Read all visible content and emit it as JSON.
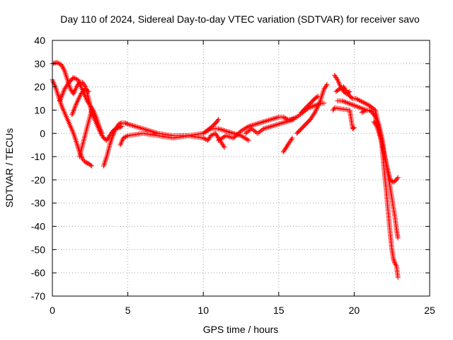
{
  "chart_data": {
    "type": "scatter",
    "title": "Day 110 of 2024, Sidereal Day-to-day VTEC variation (SDTVAR) for receiver savo",
    "xlabel": "GPS time / hours",
    "ylabel": "SDTVAR / TECUs",
    "xlim": [
      0,
      25
    ],
    "ylim": [
      -70,
      40
    ],
    "xticks": [
      0,
      5,
      10,
      15,
      20,
      25
    ],
    "yticks": [
      40,
      30,
      20,
      10,
      0,
      -10,
      -20,
      -30,
      -40,
      -50,
      -60,
      -70
    ],
    "grid": true,
    "legend": "none",
    "marker": "+",
    "color": "#ff0000",
    "series": [
      {
        "name": "s1",
        "points": [
          [
            0,
            30
          ],
          [
            0.3,
            30.5
          ],
          [
            0.6,
            29.5
          ],
          [
            0.8,
            27
          ],
          [
            1.0,
            23
          ],
          [
            1.2,
            19
          ],
          [
            1.4,
            17
          ],
          [
            1.6,
            20
          ],
          [
            1.8,
            22
          ],
          [
            2.0,
            22
          ],
          [
            2.2,
            20
          ],
          [
            2.4,
            15
          ],
          [
            2.6,
            9
          ],
          [
            2.8,
            6
          ],
          [
            3.0,
            3
          ],
          [
            3.2,
            0
          ],
          [
            3.4,
            -2
          ],
          [
            3.6,
            -3
          ],
          [
            3.8,
            -1
          ],
          [
            4.0,
            1
          ],
          [
            4.2,
            2
          ],
          [
            4.4,
            2.5
          ],
          [
            4.6,
            3
          ]
        ]
      },
      {
        "name": "s2",
        "points": [
          [
            0,
            23
          ],
          [
            0.2,
            20
          ],
          [
            0.4,
            16
          ],
          [
            0.6,
            12
          ],
          [
            0.8,
            9
          ],
          [
            1.0,
            6
          ],
          [
            1.2,
            3
          ],
          [
            1.4,
            0
          ],
          [
            1.6,
            -4
          ],
          [
            1.8,
            -8
          ],
          [
            2.0,
            -11
          ],
          [
            2.2,
            -12.5
          ],
          [
            2.4,
            -13
          ],
          [
            2.6,
            -14
          ]
        ]
      },
      {
        "name": "s3",
        "points": [
          [
            0.5,
            14
          ],
          [
            0.8,
            19
          ],
          [
            1.1,
            22
          ],
          [
            1.4,
            24
          ],
          [
            1.7,
            23
          ],
          [
            1.9,
            20
          ],
          [
            2.1,
            17
          ],
          [
            2.3,
            14
          ],
          [
            2.5,
            12
          ],
          [
            2.7,
            10
          ],
          [
            2.9,
            7
          ],
          [
            3.1,
            3
          ],
          [
            3.3,
            0
          ]
        ]
      },
      {
        "name": "s4",
        "points": [
          [
            1.3,
            8
          ],
          [
            1.6,
            13
          ],
          [
            1.9,
            17
          ],
          [
            2.2,
            19
          ],
          [
            2.4,
            18
          ]
        ]
      },
      {
        "name": "s5",
        "points": [
          [
            1.8,
            -10
          ],
          [
            2.0,
            -5
          ],
          [
            2.2,
            0
          ],
          [
            2.4,
            5
          ],
          [
            2.6,
            10
          ]
        ]
      },
      {
        "name": "s6",
        "points": [
          [
            3.4,
            -14
          ],
          [
            3.6,
            -10
          ],
          [
            3.8,
            -5
          ],
          [
            4.0,
            -1
          ],
          [
            4.2,
            2
          ],
          [
            4.4,
            4
          ],
          [
            4.6,
            4.5
          ],
          [
            4.8,
            4.5
          ],
          [
            5.0,
            4
          ],
          [
            5.5,
            3
          ],
          [
            6.0,
            2
          ],
          [
            6.5,
            1
          ],
          [
            7.0,
            0
          ],
          [
            7.5,
            -0.5
          ],
          [
            8.0,
            -1
          ],
          [
            8.5,
            -1
          ],
          [
            9.0,
            -1
          ],
          [
            9.5,
            -0.5
          ],
          [
            10.0,
            0
          ],
          [
            10.3,
            1.5
          ],
          [
            10.6,
            3
          ],
          [
            10.9,
            5
          ],
          [
            11.0,
            6
          ]
        ]
      },
      {
        "name": "s7",
        "points": [
          [
            4.5,
            -5
          ],
          [
            4.7,
            -2
          ],
          [
            5.0,
            -1
          ],
          [
            5.5,
            -0.5
          ],
          [
            6.0,
            0
          ],
          [
            6.5,
            -0.5
          ],
          [
            7.0,
            -1
          ],
          [
            7.5,
            -1.5
          ],
          [
            8.0,
            -2
          ],
          [
            8.5,
            -1.5
          ],
          [
            9.0,
            -1
          ],
          [
            9.5,
            -1.5
          ],
          [
            10.0,
            -2
          ],
          [
            10.3,
            -3
          ],
          [
            10.5,
            -1
          ],
          [
            10.8,
            0
          ],
          [
            11.0,
            -2
          ],
          [
            11.2,
            -4
          ],
          [
            11.4,
            -6
          ]
        ]
      },
      {
        "name": "s8",
        "points": [
          [
            10.0,
            0
          ],
          [
            10.5,
            2
          ],
          [
            11.0,
            2
          ],
          [
            11.5,
            1
          ],
          [
            12.0,
            0
          ],
          [
            12.5,
            -1
          ],
          [
            13.0,
            -3
          ]
        ]
      },
      {
        "name": "s9",
        "points": [
          [
            11.0,
            -3
          ],
          [
            11.5,
            -1
          ],
          [
            12.0,
            -2
          ],
          [
            12.5,
            1
          ],
          [
            13.0,
            3
          ],
          [
            13.5,
            4
          ],
          [
            14.0,
            5
          ],
          [
            14.5,
            6
          ],
          [
            15.0,
            7
          ],
          [
            15.3,
            7
          ],
          [
            15.6,
            6
          ],
          [
            15.9,
            6
          ]
        ]
      },
      {
        "name": "s10",
        "points": [
          [
            12.8,
            0
          ],
          [
            13.2,
            2
          ],
          [
            13.6,
            0
          ],
          [
            14.0,
            2
          ],
          [
            14.5,
            3
          ],
          [
            15.0,
            4
          ],
          [
            15.5,
            5
          ],
          [
            16.0,
            6
          ]
        ]
      },
      {
        "name": "s11",
        "points": [
          [
            15.3,
            -8
          ],
          [
            15.5,
            -6
          ],
          [
            15.7,
            -4
          ],
          [
            15.9,
            -2
          ]
        ]
      },
      {
        "name": "s12",
        "points": [
          [
            16.2,
            0
          ],
          [
            16.5,
            2
          ],
          [
            16.8,
            4
          ],
          [
            17.1,
            6
          ],
          [
            17.4,
            9
          ],
          [
            17.7,
            13
          ],
          [
            18.0,
            19
          ],
          [
            18.2,
            21
          ]
        ]
      },
      {
        "name": "s13",
        "points": [
          [
            15.8,
            6
          ],
          [
            16.2,
            7
          ],
          [
            16.6,
            9
          ],
          [
            17.0,
            11
          ],
          [
            17.4,
            12
          ],
          [
            17.8,
            13
          ],
          [
            18.0,
            13
          ]
        ]
      },
      {
        "name": "s14",
        "points": [
          [
            16.5,
            9
          ],
          [
            16.8,
            11
          ],
          [
            17.1,
            13
          ],
          [
            17.4,
            15
          ],
          [
            17.6,
            16
          ]
        ]
      },
      {
        "name": "s15",
        "points": [
          [
            18.7,
            25
          ],
          [
            18.9,
            23
          ],
          [
            19.1,
            20
          ],
          [
            19.3,
            18
          ],
          [
            19.5,
            17
          ],
          [
            19.7,
            18
          ]
        ]
      },
      {
        "name": "s16",
        "points": [
          [
            18.8,
            18
          ],
          [
            19.0,
            19
          ],
          [
            19.3,
            20
          ],
          [
            19.5,
            18
          ],
          [
            19.7,
            16
          ],
          [
            19.9,
            15
          ],
          [
            20.1,
            15
          ],
          [
            20.4,
            14
          ],
          [
            20.7,
            13
          ],
          [
            21.0,
            12
          ],
          [
            21.2,
            11
          ],
          [
            21.4,
            10
          ],
          [
            21.5,
            7
          ],
          [
            21.7,
            2
          ],
          [
            21.9,
            -4
          ],
          [
            22.0,
            -10
          ],
          [
            22.2,
            -15
          ],
          [
            22.4,
            -20
          ],
          [
            22.6,
            -21
          ],
          [
            22.8,
            -20
          ],
          [
            22.9,
            -19
          ]
        ]
      },
      {
        "name": "s17",
        "points": [
          [
            20.5,
            9
          ],
          [
            20.8,
            10
          ],
          [
            21.0,
            10
          ],
          [
            21.2,
            9
          ],
          [
            21.4,
            7
          ],
          [
            21.6,
            3
          ],
          [
            21.8,
            -3
          ],
          [
            21.9,
            -10
          ],
          [
            22.0,
            -17
          ],
          [
            22.1,
            -23
          ],
          [
            22.2,
            -30
          ],
          [
            22.3,
            -37
          ],
          [
            22.4,
            -44
          ],
          [
            22.5,
            -50
          ],
          [
            22.6,
            -54
          ],
          [
            22.7,
            -56
          ],
          [
            22.8,
            -57
          ],
          [
            22.9,
            -62
          ]
        ]
      },
      {
        "name": "s18",
        "points": [
          [
            21.3,
            5
          ],
          [
            21.5,
            3
          ],
          [
            21.7,
            -1
          ],
          [
            21.9,
            -6
          ],
          [
            22.1,
            -12
          ],
          [
            22.3,
            -20
          ],
          [
            22.5,
            -28
          ],
          [
            22.7,
            -36
          ],
          [
            22.8,
            -41
          ],
          [
            22.9,
            -45
          ]
        ]
      },
      {
        "name": "s19",
        "points": [
          [
            18.9,
            14
          ],
          [
            19.2,
            14
          ],
          [
            19.6,
            13
          ],
          [
            20.0,
            12
          ],
          [
            20.4,
            11
          ],
          [
            20.8,
            10
          ]
        ]
      },
      {
        "name": "s20",
        "points": [
          [
            18.6,
            10
          ],
          [
            18.7,
            11
          ],
          [
            19.7,
            10
          ],
          [
            19.9,
            2
          ],
          [
            20.0,
            2.5
          ]
        ]
      }
    ]
  }
}
